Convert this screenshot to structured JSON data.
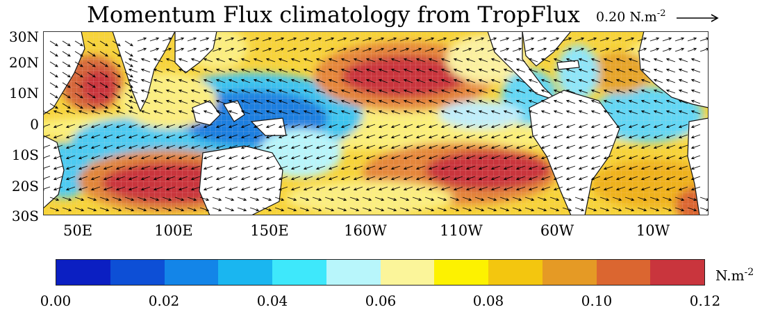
{
  "title": "Momentum Flux climatology from TropFlux",
  "reference_vector": {
    "label": "0.20 N.m",
    "exponent": "-2"
  },
  "lat_labels": [
    "30N",
    "20N",
    "10N",
    "0",
    "10S",
    "20S",
    "30S"
  ],
  "lon_labels": [
    "50E",
    "100E",
    "150E",
    "160W",
    "110W",
    "60W",
    "10W"
  ],
  "colorbar": {
    "unit": "N.m",
    "unit_exponent": "-2",
    "tick_labels": [
      "0.00",
      "0.02",
      "0.04",
      "0.06",
      "0.08",
      "0.10",
      "0.12"
    ],
    "colors": [
      "#0b1fc2",
      "#0d4fd6",
      "#1385e8",
      "#1ab6f0",
      "#3ee8fb",
      "#b8f6fb",
      "#fbf59a",
      "#fdf200",
      "#f3c60f",
      "#e59a25",
      "#db6630",
      "#c9353d"
    ]
  },
  "colors": {
    "land": "#ffffff",
    "coast": "#111111",
    "arrow": "#000000"
  }
}
